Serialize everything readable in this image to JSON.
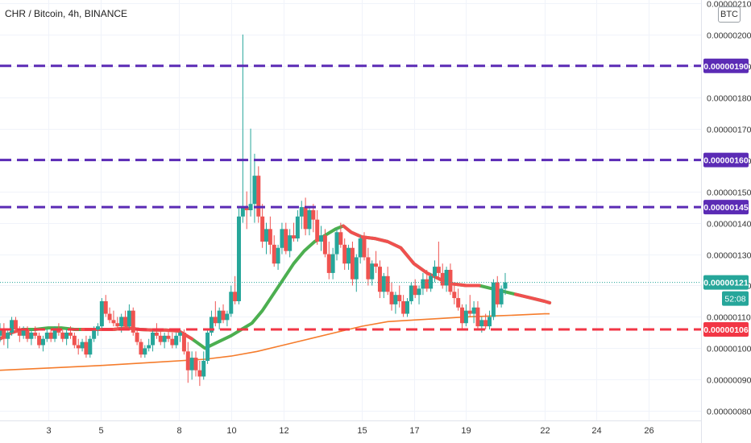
{
  "chart_data": {
    "type": "candlestick",
    "title": "CHR / Bitcoin, 4h, BINANCE",
    "currency_badge": "BTC",
    "y_range": [
      7.7e-07,
      2.11e-06
    ],
    "y_ticks": [
      {
        "value": 8e-07,
        "label": "0.00000080"
      },
      {
        "value": 9e-07,
        "label": "0.00000090"
      },
      {
        "value": 1e-06,
        "label": "0.00000100"
      },
      {
        "value": 1.1e-06,
        "label": "0.00000110"
      },
      {
        "value": 1.2e-06,
        "label": "0.00000120"
      },
      {
        "value": 1.3e-06,
        "label": "0.00000130"
      },
      {
        "value": 1.4e-06,
        "label": "0.00000140"
      },
      {
        "value": 1.5e-06,
        "label": "0.00000150"
      },
      {
        "value": 1.6e-06,
        "label": "0.00000160"
      },
      {
        "value": 1.7e-06,
        "label": "0.00000170"
      },
      {
        "value": 1.8e-06,
        "label": "0.00000180"
      },
      {
        "value": 1.9e-06,
        "label": "0.00000190"
      },
      {
        "value": 2e-06,
        "label": "0.00000200"
      },
      {
        "value": 2.1e-06,
        "label": "0.00000210"
      }
    ],
    "x_range": [
      1.15,
      28.0
    ],
    "x_ticks": [
      "3",
      "5",
      "8",
      "10",
      "12",
      "15",
      "17",
      "19",
      "22",
      "24",
      "26"
    ],
    "x_tick_days": [
      3,
      5,
      8,
      10,
      12,
      15,
      17,
      19,
      22,
      24,
      26
    ],
    "horizontal_levels": [
      {
        "value": 1.9e-06,
        "label": "0.00000190",
        "color": "#5b2bb5"
      },
      {
        "value": 1.6e-06,
        "label": "0.00000160",
        "color": "#5b2bb5"
      },
      {
        "value": 1.45e-06,
        "label": "0.00000145",
        "color": "#5b2bb5"
      },
      {
        "value": 1.06e-06,
        "label": "0.00000106",
        "color": "#f23645"
      }
    ],
    "last_price": {
      "value": 1.21e-06,
      "label": "0.00000121",
      "countdown": "52:08",
      "color": "#26a69a"
    },
    "colors": {
      "up": "#26a69a",
      "down": "#ef5350",
      "ma_up": "#4caf50",
      "ma_down": "#f0504f",
      "ma_long": "#f57c2c",
      "level_purple": "#5b2bb5",
      "level_red": "#f23645"
    },
    "ma_short": [
      [
        1.15,
        1.03
      ],
      [
        1.6,
        1.05
      ],
      [
        2.0,
        1.06
      ],
      [
        2.5,
        1.06
      ],
      [
        3.0,
        1.065
      ],
      [
        3.5,
        1.065
      ],
      [
        4.0,
        1.06
      ],
      [
        4.5,
        1.06
      ],
      [
        5.0,
        1.06
      ],
      [
        5.5,
        1.06
      ],
      [
        6.0,
        1.065
      ],
      [
        6.5,
        1.06
      ],
      [
        7.0,
        1.058
      ],
      [
        7.5,
        1.058
      ],
      [
        8.0,
        1.055
      ],
      [
        8.5,
        1.03
      ],
      [
        9.0,
        1.0
      ],
      [
        9.5,
        1.02
      ],
      [
        10.0,
        1.04
      ],
      [
        10.4,
        1.06
      ],
      [
        10.8,
        1.08
      ],
      [
        11.2,
        1.12
      ],
      [
        11.6,
        1.17
      ],
      [
        12.0,
        1.22
      ],
      [
        12.4,
        1.27
      ],
      [
        12.8,
        1.31
      ],
      [
        13.2,
        1.34
      ],
      [
        13.6,
        1.36
      ],
      [
        14.0,
        1.38
      ],
      [
        14.3,
        1.39
      ],
      [
        14.6,
        1.37
      ],
      [
        15.0,
        1.355
      ],
      [
        15.5,
        1.35
      ],
      [
        16.0,
        1.34
      ],
      [
        16.5,
        1.32
      ],
      [
        17.0,
        1.27
      ],
      [
        17.5,
        1.24
      ],
      [
        18.0,
        1.22
      ],
      [
        18.5,
        1.205
      ],
      [
        19.0,
        1.2
      ],
      [
        19.5,
        1.2
      ],
      [
        20.0,
        1.19
      ],
      [
        20.5,
        1.18
      ],
      [
        21.0,
        1.17
      ],
      [
        21.5,
        1.16
      ],
      [
        22.0,
        1.15
      ],
      [
        22.2,
        1.145
      ]
    ],
    "ma_short_down_segments": [
      [
        1.15,
        1.8
      ],
      [
        4.3,
        8.5
      ],
      [
        14.3,
        19.5
      ],
      [
        20.9,
        22.2
      ]
    ],
    "ma_long": [
      [
        1.15,
        0.93
      ],
      [
        3.0,
        0.937
      ],
      [
        5.0,
        0.945
      ],
      [
        7.0,
        0.955
      ],
      [
        9.0,
        0.965
      ],
      [
        10.0,
        0.975
      ],
      [
        11.0,
        0.99
      ],
      [
        12.0,
        1.01
      ],
      [
        13.0,
        1.03
      ],
      [
        14.0,
        1.05
      ],
      [
        15.0,
        1.07
      ],
      [
        16.0,
        1.085
      ],
      [
        17.0,
        1.09
      ],
      [
        18.0,
        1.095
      ],
      [
        19.0,
        1.1
      ],
      [
        20.0,
        1.103
      ],
      [
        21.0,
        1.106
      ],
      [
        22.0,
        1.11
      ],
      [
        22.2,
        1.11
      ]
    ],
    "candles": [
      [
        1.15,
        1.04,
        1.08,
        1.02,
        1.06
      ],
      [
        1.3,
        1.06,
        1.08,
        1.01,
        1.03
      ],
      [
        1.45,
        1.03,
        1.06,
        1.0,
        1.05
      ],
      [
        1.6,
        1.05,
        1.1,
        1.04,
        1.09
      ],
      [
        1.75,
        1.09,
        1.1,
        1.05,
        1.06
      ],
      [
        1.9,
        1.06,
        1.07,
        1.02,
        1.04
      ],
      [
        2.05,
        1.04,
        1.07,
        1.03,
        1.06
      ],
      [
        2.2,
        1.06,
        1.07,
        1.02,
        1.03
      ],
      [
        2.35,
        1.03,
        1.06,
        1.01,
        1.05
      ],
      [
        2.5,
        1.05,
        1.07,
        1.03,
        1.04
      ],
      [
        2.65,
        1.04,
        1.05,
        1.0,
        1.01
      ],
      [
        2.8,
        1.01,
        1.04,
        0.99,
        1.03
      ],
      [
        2.95,
        1.03,
        1.06,
        1.02,
        1.05
      ],
      [
        3.1,
        1.05,
        1.06,
        1.02,
        1.03
      ],
      [
        3.25,
        1.03,
        1.07,
        1.02,
        1.06
      ],
      [
        3.4,
        1.06,
        1.08,
        1.04,
        1.05
      ],
      [
        3.55,
        1.05,
        1.06,
        1.02,
        1.03
      ],
      [
        3.7,
        1.03,
        1.06,
        1.01,
        1.05
      ],
      [
        3.85,
        1.05,
        1.07,
        1.03,
        1.04
      ],
      [
        4.0,
        1.04,
        1.05,
        1.0,
        1.01
      ],
      [
        4.15,
        1.01,
        1.03,
        0.98,
        1.0
      ],
      [
        4.3,
        1.0,
        1.03,
        0.99,
        1.02
      ],
      [
        4.45,
        1.02,
        1.04,
        0.97,
        0.98
      ],
      [
        4.6,
        0.98,
        1.04,
        0.97,
        1.03
      ],
      [
        4.75,
        1.03,
        1.07,
        1.02,
        1.06
      ],
      [
        4.9,
        1.06,
        1.08,
        1.04,
        1.07
      ],
      [
        5.05,
        1.07,
        1.16,
        1.06,
        1.15
      ],
      [
        5.2,
        1.15,
        1.17,
        1.1,
        1.11
      ],
      [
        5.35,
        1.11,
        1.13,
        1.08,
        1.09
      ],
      [
        5.5,
        1.09,
        1.12,
        1.07,
        1.08
      ],
      [
        5.65,
        1.08,
        1.1,
        1.06,
        1.07
      ],
      [
        5.8,
        1.07,
        1.11,
        1.05,
        1.1
      ],
      [
        5.95,
        1.1,
        1.12,
        1.06,
        1.07
      ],
      [
        6.1,
        1.07,
        1.14,
        1.06,
        1.12
      ],
      [
        6.25,
        1.12,
        1.13,
        1.04,
        1.05
      ],
      [
        6.4,
        1.05,
        1.06,
        1.01,
        1.02
      ],
      [
        6.55,
        1.02,
        1.03,
        0.97,
        0.98
      ],
      [
        6.7,
        0.98,
        1.01,
        0.97,
        1.0
      ],
      [
        6.85,
        1.0,
        1.03,
        0.99,
        1.01
      ],
      [
        7.0,
        1.01,
        1.06,
        0.99,
        1.05
      ],
      [
        7.15,
        1.05,
        1.08,
        1.03,
        1.04
      ],
      [
        7.3,
        1.04,
        1.06,
        1.01,
        1.02
      ],
      [
        7.45,
        1.02,
        1.05,
        1.0,
        1.04
      ],
      [
        7.6,
        1.04,
        1.06,
        1.02,
        1.03
      ],
      [
        7.75,
        1.03,
        1.05,
        1.0,
        1.01
      ],
      [
        7.9,
        1.01,
        1.05,
        1.0,
        1.04
      ],
      [
        8.05,
        1.04,
        1.06,
        1.02,
        1.05
      ],
      [
        8.2,
        1.05,
        1.06,
        0.98,
        0.99
      ],
      [
        8.35,
        0.99,
        1.02,
        0.89,
        0.93
      ],
      [
        8.5,
        0.93,
        0.99,
        0.9,
        0.97
      ],
      [
        8.65,
        0.97,
        0.99,
        0.91,
        0.93
      ],
      [
        8.8,
        0.93,
        0.96,
        0.88,
        0.91
      ],
      [
        8.95,
        0.91,
        0.99,
        0.9,
        0.96
      ],
      [
        9.1,
        0.96,
        1.06,
        0.95,
        1.05
      ],
      [
        9.25,
        1.05,
        1.12,
        1.04,
        1.1
      ],
      [
        9.4,
        1.1,
        1.15,
        1.07,
        1.08
      ],
      [
        9.55,
        1.08,
        1.13,
        1.06,
        1.12
      ],
      [
        9.7,
        1.12,
        1.14,
        1.08,
        1.09
      ],
      [
        9.85,
        1.09,
        1.12,
        1.07,
        1.11
      ],
      [
        10.0,
        1.11,
        1.2,
        1.1,
        1.18
      ],
      [
        10.15,
        1.18,
        1.23,
        1.14,
        1.15
      ],
      [
        10.3,
        1.15,
        1.45,
        1.14,
        1.42
      ],
      [
        10.45,
        1.42,
        2.0,
        1.4,
        1.45
      ],
      [
        10.6,
        1.45,
        1.5,
        1.38,
        1.44
      ],
      [
        10.75,
        1.44,
        1.7,
        1.42,
        1.46
      ],
      [
        10.9,
        1.46,
        1.62,
        1.4,
        1.55
      ],
      [
        11.05,
        1.55,
        1.58,
        1.4,
        1.42
      ],
      [
        11.2,
        1.42,
        1.46,
        1.32,
        1.34
      ],
      [
        11.35,
        1.34,
        1.4,
        1.3,
        1.38
      ],
      [
        11.5,
        1.38,
        1.42,
        1.3,
        1.33
      ],
      [
        11.65,
        1.33,
        1.36,
        1.26,
        1.27
      ],
      [
        11.8,
        1.27,
        1.33,
        1.25,
        1.32
      ],
      [
        11.95,
        1.32,
        1.4,
        1.3,
        1.38
      ],
      [
        12.1,
        1.38,
        1.4,
        1.3,
        1.31
      ],
      [
        12.25,
        1.31,
        1.38,
        1.29,
        1.36
      ],
      [
        12.4,
        1.36,
        1.4,
        1.34,
        1.35
      ],
      [
        12.55,
        1.35,
        1.44,
        1.34,
        1.42
      ],
      [
        12.7,
        1.42,
        1.47,
        1.38,
        1.45
      ],
      [
        12.85,
        1.45,
        1.48,
        1.36,
        1.38
      ],
      [
        13.0,
        1.38,
        1.45,
        1.36,
        1.44
      ],
      [
        13.15,
        1.44,
        1.46,
        1.37,
        1.41
      ],
      [
        13.3,
        1.41,
        1.44,
        1.33,
        1.34
      ],
      [
        13.45,
        1.34,
        1.39,
        1.31,
        1.36
      ],
      [
        13.6,
        1.36,
        1.38,
        1.29,
        1.3
      ],
      [
        13.75,
        1.3,
        1.34,
        1.22,
        1.24
      ],
      [
        13.9,
        1.24,
        1.32,
        1.22,
        1.3
      ],
      [
        14.05,
        1.3,
        1.38,
        1.28,
        1.37
      ],
      [
        14.2,
        1.37,
        1.4,
        1.32,
        1.33
      ],
      [
        14.35,
        1.33,
        1.35,
        1.25,
        1.27
      ],
      [
        14.5,
        1.27,
        1.33,
        1.25,
        1.32
      ],
      [
        14.65,
        1.32,
        1.34,
        1.2,
        1.22
      ],
      [
        14.8,
        1.22,
        1.3,
        1.18,
        1.29
      ],
      [
        14.95,
        1.29,
        1.36,
        1.27,
        1.35
      ],
      [
        15.1,
        1.35,
        1.37,
        1.28,
        1.29
      ],
      [
        15.25,
        1.29,
        1.32,
        1.2,
        1.22
      ],
      [
        15.4,
        1.22,
        1.28,
        1.2,
        1.27
      ],
      [
        15.55,
        1.27,
        1.31,
        1.24,
        1.26
      ],
      [
        15.7,
        1.26,
        1.28,
        1.16,
        1.18
      ],
      [
        15.85,
        1.18,
        1.24,
        1.16,
        1.23
      ],
      [
        16.0,
        1.23,
        1.26,
        1.17,
        1.18
      ],
      [
        16.15,
        1.18,
        1.21,
        1.12,
        1.14
      ],
      [
        16.3,
        1.14,
        1.18,
        1.11,
        1.17
      ],
      [
        16.45,
        1.17,
        1.2,
        1.13,
        1.15
      ],
      [
        16.6,
        1.15,
        1.17,
        1.1,
        1.11
      ],
      [
        16.75,
        1.11,
        1.16,
        1.1,
        1.15
      ],
      [
        16.9,
        1.15,
        1.21,
        1.14,
        1.2
      ],
      [
        17.05,
        1.2,
        1.22,
        1.16,
        1.17
      ],
      [
        17.2,
        1.17,
        1.2,
        1.14,
        1.19
      ],
      [
        17.35,
        1.19,
        1.24,
        1.17,
        1.22
      ],
      [
        17.5,
        1.22,
        1.25,
        1.18,
        1.19
      ],
      [
        17.65,
        1.19,
        1.24,
        1.18,
        1.23
      ],
      [
        17.8,
        1.23,
        1.28,
        1.21,
        1.26
      ],
      [
        17.95,
        1.26,
        1.34,
        1.22,
        1.24
      ],
      [
        18.1,
        1.24,
        1.27,
        1.19,
        1.2
      ],
      [
        18.25,
        1.2,
        1.26,
        1.18,
        1.25
      ],
      [
        18.4,
        1.25,
        1.27,
        1.17,
        1.18
      ],
      [
        18.55,
        1.18,
        1.2,
        1.14,
        1.16
      ],
      [
        18.7,
        1.16,
        1.19,
        1.12,
        1.13
      ],
      [
        18.85,
        1.13,
        1.14,
        1.06,
        1.08
      ],
      [
        19.0,
        1.08,
        1.14,
        1.07,
        1.12
      ],
      [
        19.15,
        1.12,
        1.17,
        1.1,
        1.11
      ],
      [
        19.3,
        1.11,
        1.15,
        1.08,
        1.13
      ],
      [
        19.45,
        1.13,
        1.15,
        1.06,
        1.07
      ],
      [
        19.6,
        1.07,
        1.1,
        1.05,
        1.09
      ],
      [
        19.75,
        1.09,
        1.11,
        1.06,
        1.07
      ],
      [
        19.9,
        1.07,
        1.12,
        1.06,
        1.1
      ],
      [
        20.05,
        1.1,
        1.22,
        1.09,
        1.21
      ],
      [
        20.2,
        1.21,
        1.23,
        1.13,
        1.14
      ],
      [
        20.35,
        1.14,
        1.2,
        1.13,
        1.19
      ],
      [
        20.5,
        1.19,
        1.24,
        1.17,
        1.21
      ]
    ]
  }
}
